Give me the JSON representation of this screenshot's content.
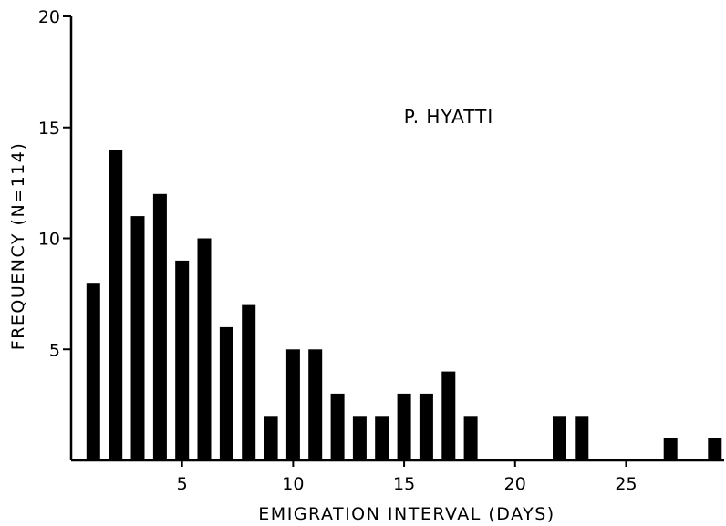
{
  "chart_data": {
    "type": "bar",
    "title": "P. HYATTI",
    "xlabel": "EMIGRATION INTERVAL (DAYS)",
    "ylabel": "FREQUENCY (N=114)",
    "xlim": [
      0,
      29.5
    ],
    "ylim": [
      0,
      20
    ],
    "xticks": [
      5,
      10,
      15,
      20,
      25
    ],
    "yticks": [
      5,
      10,
      15,
      20
    ],
    "bars": [
      {
        "x": 1,
        "value": 8
      },
      {
        "x": 2,
        "value": 14
      },
      {
        "x": 3,
        "value": 11
      },
      {
        "x": 4,
        "value": 12
      },
      {
        "x": 5,
        "value": 9
      },
      {
        "x": 6,
        "value": 10
      },
      {
        "x": 7,
        "value": 6
      },
      {
        "x": 8,
        "value": 7
      },
      {
        "x": 9,
        "value": 2
      },
      {
        "x": 10,
        "value": 5
      },
      {
        "x": 11,
        "value": 5
      },
      {
        "x": 12,
        "value": 3
      },
      {
        "x": 13,
        "value": 2
      },
      {
        "x": 14,
        "value": 2
      },
      {
        "x": 15,
        "value": 3
      },
      {
        "x": 16,
        "value": 3
      },
      {
        "x": 17,
        "value": 4
      },
      {
        "x": 18,
        "value": 2
      },
      {
        "x": 22,
        "value": 2
      },
      {
        "x": 23,
        "value": 2
      },
      {
        "x": 27,
        "value": 1
      },
      {
        "x": 29,
        "value": 1
      }
    ],
    "bar_color": "#000000",
    "grid": false
  }
}
